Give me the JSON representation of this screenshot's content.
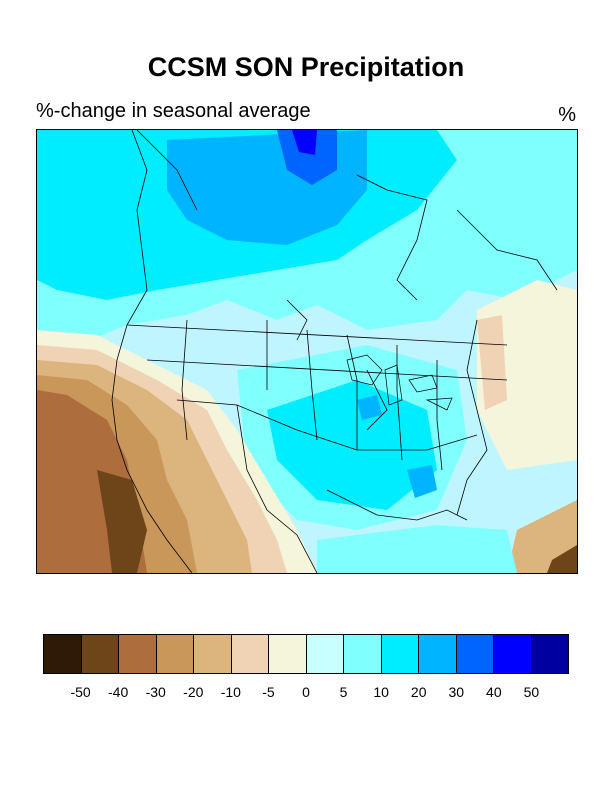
{
  "title": "CCSM SON Precipitation",
  "subtitle": "%-change in seasonal average",
  "units": "%",
  "legend": {
    "colors": [
      "#2e1a05",
      "#6e4519",
      "#ad6d3d",
      "#c9975a",
      "#dcb47d",
      "#f0d2b4",
      "#f5f5dc",
      "#c8ffff",
      "#80ffff",
      "#00ecff",
      "#00b4ff",
      "#0064ff",
      "#0000ff",
      "#0000a0"
    ],
    "labels": [
      "-50",
      "-40",
      "-30",
      "-20",
      "-10",
      "-5",
      "0",
      "5",
      "10",
      "20",
      "30",
      "40",
      "50"
    ]
  },
  "map": {
    "region": "North America",
    "variable": "precipitation",
    "season": "SON",
    "model": "CCSM"
  }
}
